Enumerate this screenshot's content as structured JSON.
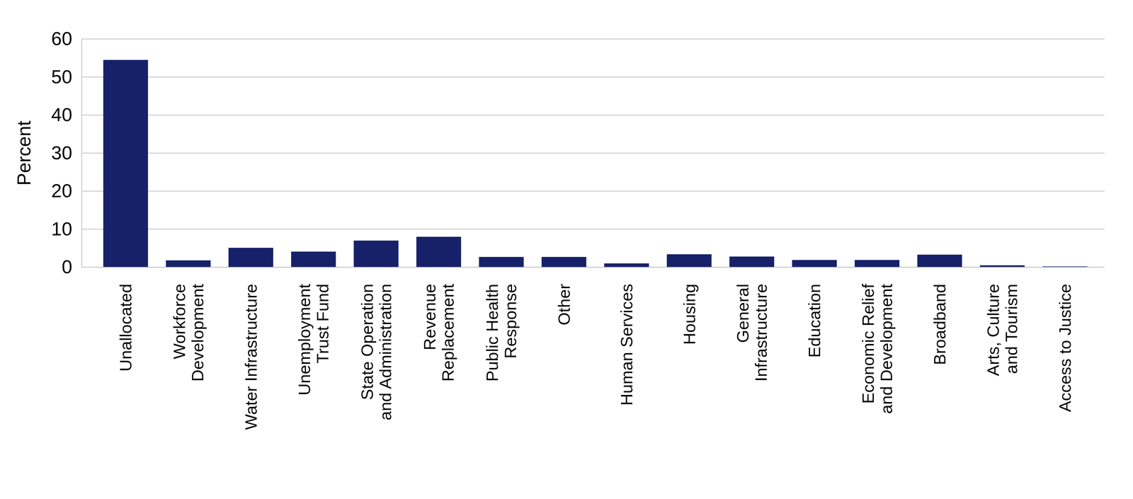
{
  "chart_data": {
    "type": "bar",
    "y_label": "Percent",
    "categories": [
      "Unallocated",
      "Workforce\nDevelopment",
      "Water Infrastructure",
      "Unemployment\nTrust Fund",
      "State Operation\nand Administration",
      "Revenue\nReplacement",
      "Public Health\nResponse",
      "Other",
      "Human Services",
      "Housing",
      "General\nInfrastructure",
      "Education",
      "Economic Relief\nand Development",
      "Broadband",
      "Arts, Culture\nand Tourism",
      "Access to Justice"
    ],
    "values": [
      54.5,
      1.8,
      5.1,
      4.1,
      7.0,
      8.0,
      2.7,
      2.7,
      1.0,
      3.4,
      2.8,
      1.9,
      1.9,
      3.3,
      0.5,
      0.2
    ],
    "color": "#172169",
    "ylim": [
      0,
      60
    ],
    "yticks": [
      0,
      10,
      20,
      30,
      40,
      50,
      60
    ],
    "grid": true
  }
}
